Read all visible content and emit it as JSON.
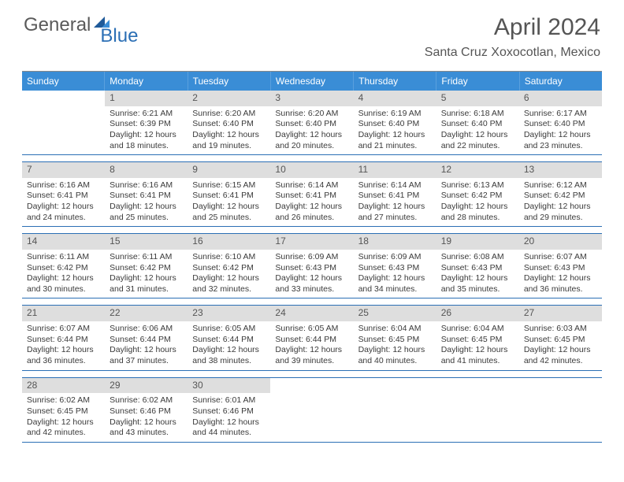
{
  "brand": {
    "part1": "General",
    "part2": "Blue"
  },
  "title": "April 2024",
  "location": "Santa Cruz Xoxocotlan, Mexico",
  "colors": {
    "header_bg": "#3a8dd6",
    "header_fg": "#ffffff",
    "week_border": "#2b6fb5",
    "daybar_bg": "#dedede",
    "text": "#3a3a3a"
  },
  "weekdays": [
    "Sunday",
    "Monday",
    "Tuesday",
    "Wednesday",
    "Thursday",
    "Friday",
    "Saturday"
  ],
  "weeks": [
    [
      {
        "n": "",
        "sr": "",
        "ss": "",
        "dl": ""
      },
      {
        "n": "1",
        "sr": "6:21 AM",
        "ss": "6:39 PM",
        "dl": "12 hours and 18 minutes."
      },
      {
        "n": "2",
        "sr": "6:20 AM",
        "ss": "6:40 PM",
        "dl": "12 hours and 19 minutes."
      },
      {
        "n": "3",
        "sr": "6:20 AM",
        "ss": "6:40 PM",
        "dl": "12 hours and 20 minutes."
      },
      {
        "n": "4",
        "sr": "6:19 AM",
        "ss": "6:40 PM",
        "dl": "12 hours and 21 minutes."
      },
      {
        "n": "5",
        "sr": "6:18 AM",
        "ss": "6:40 PM",
        "dl": "12 hours and 22 minutes."
      },
      {
        "n": "6",
        "sr": "6:17 AM",
        "ss": "6:40 PM",
        "dl": "12 hours and 23 minutes."
      }
    ],
    [
      {
        "n": "7",
        "sr": "6:16 AM",
        "ss": "6:41 PM",
        "dl": "12 hours and 24 minutes."
      },
      {
        "n": "8",
        "sr": "6:16 AM",
        "ss": "6:41 PM",
        "dl": "12 hours and 25 minutes."
      },
      {
        "n": "9",
        "sr": "6:15 AM",
        "ss": "6:41 PM",
        "dl": "12 hours and 25 minutes."
      },
      {
        "n": "10",
        "sr": "6:14 AM",
        "ss": "6:41 PM",
        "dl": "12 hours and 26 minutes."
      },
      {
        "n": "11",
        "sr": "6:14 AM",
        "ss": "6:41 PM",
        "dl": "12 hours and 27 minutes."
      },
      {
        "n": "12",
        "sr": "6:13 AM",
        "ss": "6:42 PM",
        "dl": "12 hours and 28 minutes."
      },
      {
        "n": "13",
        "sr": "6:12 AM",
        "ss": "6:42 PM",
        "dl": "12 hours and 29 minutes."
      }
    ],
    [
      {
        "n": "14",
        "sr": "6:11 AM",
        "ss": "6:42 PM",
        "dl": "12 hours and 30 minutes."
      },
      {
        "n": "15",
        "sr": "6:11 AM",
        "ss": "6:42 PM",
        "dl": "12 hours and 31 minutes."
      },
      {
        "n": "16",
        "sr": "6:10 AM",
        "ss": "6:42 PM",
        "dl": "12 hours and 32 minutes."
      },
      {
        "n": "17",
        "sr": "6:09 AM",
        "ss": "6:43 PM",
        "dl": "12 hours and 33 minutes."
      },
      {
        "n": "18",
        "sr": "6:09 AM",
        "ss": "6:43 PM",
        "dl": "12 hours and 34 minutes."
      },
      {
        "n": "19",
        "sr": "6:08 AM",
        "ss": "6:43 PM",
        "dl": "12 hours and 35 minutes."
      },
      {
        "n": "20",
        "sr": "6:07 AM",
        "ss": "6:43 PM",
        "dl": "12 hours and 36 minutes."
      }
    ],
    [
      {
        "n": "21",
        "sr": "6:07 AM",
        "ss": "6:44 PM",
        "dl": "12 hours and 36 minutes."
      },
      {
        "n": "22",
        "sr": "6:06 AM",
        "ss": "6:44 PM",
        "dl": "12 hours and 37 minutes."
      },
      {
        "n": "23",
        "sr": "6:05 AM",
        "ss": "6:44 PM",
        "dl": "12 hours and 38 minutes."
      },
      {
        "n": "24",
        "sr": "6:05 AM",
        "ss": "6:44 PM",
        "dl": "12 hours and 39 minutes."
      },
      {
        "n": "25",
        "sr": "6:04 AM",
        "ss": "6:45 PM",
        "dl": "12 hours and 40 minutes."
      },
      {
        "n": "26",
        "sr": "6:04 AM",
        "ss": "6:45 PM",
        "dl": "12 hours and 41 minutes."
      },
      {
        "n": "27",
        "sr": "6:03 AM",
        "ss": "6:45 PM",
        "dl": "12 hours and 42 minutes."
      }
    ],
    [
      {
        "n": "28",
        "sr": "6:02 AM",
        "ss": "6:45 PM",
        "dl": "12 hours and 42 minutes."
      },
      {
        "n": "29",
        "sr": "6:02 AM",
        "ss": "6:46 PM",
        "dl": "12 hours and 43 minutes."
      },
      {
        "n": "30",
        "sr": "6:01 AM",
        "ss": "6:46 PM",
        "dl": "12 hours and 44 minutes."
      },
      {
        "n": "",
        "sr": "",
        "ss": "",
        "dl": ""
      },
      {
        "n": "",
        "sr": "",
        "ss": "",
        "dl": ""
      },
      {
        "n": "",
        "sr": "",
        "ss": "",
        "dl": ""
      },
      {
        "n": "",
        "sr": "",
        "ss": "",
        "dl": ""
      }
    ]
  ],
  "labels": {
    "sunrise": "Sunrise:",
    "sunset": "Sunset:",
    "daylight": "Daylight:"
  }
}
